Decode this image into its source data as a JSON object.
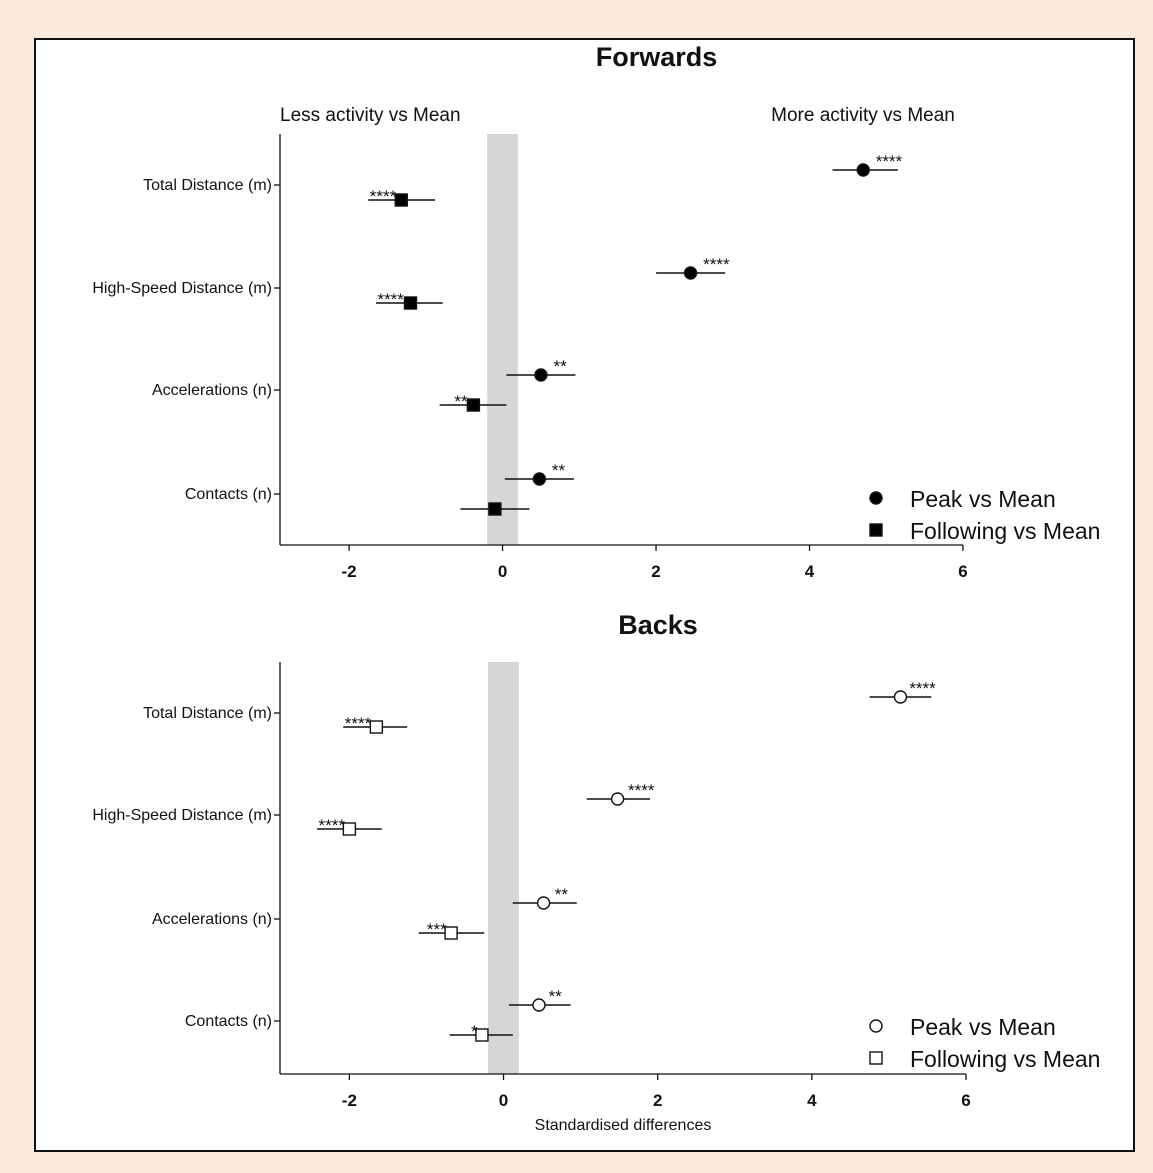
{
  "chart_data": [
    {
      "type": "scatter",
      "title": "Forwards",
      "marker_fill": "filled",
      "left_label": "Less activity vs Mean",
      "right_label": "More activity vs Mean",
      "categories": [
        "Total Distance (m)",
        "High-Speed Distance (m)",
        "Accelerations (n)",
        "Contacts (n)"
      ],
      "xlim": [
        -2.9,
        6
      ],
      "xticks": [
        -2,
        0,
        2,
        4,
        6
      ],
      "xlabel": "",
      "reference_band": [
        -0.2,
        0.2
      ],
      "series": [
        {
          "name": "Peak vs Mean",
          "marker": "circle",
          "values": [
            4.7,
            2.45,
            0.5,
            0.48
          ],
          "ci_low": [
            4.3,
            2.0,
            0.05,
            0.03
          ],
          "ci_high": [
            5.15,
            2.9,
            0.95,
            0.93
          ],
          "significance": [
            "****",
            "****",
            "**",
            "**"
          ]
        },
        {
          "name": "Following vs Mean",
          "marker": "square",
          "values": [
            -1.32,
            -1.2,
            -0.38,
            -0.1
          ],
          "ci_low": [
            -1.75,
            -1.65,
            -0.82,
            -0.55
          ],
          "ci_high": [
            -0.88,
            -0.78,
            0.05,
            0.35
          ],
          "significance": [
            "****",
            "****",
            "**",
            ""
          ]
        }
      ]
    },
    {
      "type": "scatter",
      "title": "Backs",
      "marker_fill": "open",
      "left_label": "",
      "right_label": "",
      "categories": [
        "Total Distance (m)",
        "High-Speed Distance (m)",
        "Accelerations (n)",
        "Contacts (n)"
      ],
      "xlim": [
        -2.9,
        6
      ],
      "xticks": [
        -2,
        0,
        2,
        4,
        6
      ],
      "xlabel": "Standardised differences",
      "reference_band": [
        -0.2,
        0.2
      ],
      "series": [
        {
          "name": "Peak vs Mean",
          "marker": "circle",
          "values": [
            5.15,
            1.48,
            0.52,
            0.46
          ],
          "ci_low": [
            4.75,
            1.08,
            0.12,
            0.07
          ],
          "ci_high": [
            5.55,
            1.9,
            0.95,
            0.87
          ],
          "significance": [
            "****",
            "****",
            "**",
            "**"
          ]
        },
        {
          "name": "Following vs Mean",
          "marker": "square",
          "values": [
            -1.65,
            -2.0,
            -0.68,
            -0.28
          ],
          "ci_low": [
            -2.08,
            -2.42,
            -1.1,
            -0.7
          ],
          "ci_high": [
            -1.25,
            -1.58,
            -0.25,
            0.12
          ],
          "significance": [
            "****",
            "****",
            "***",
            "*"
          ]
        }
      ]
    }
  ]
}
